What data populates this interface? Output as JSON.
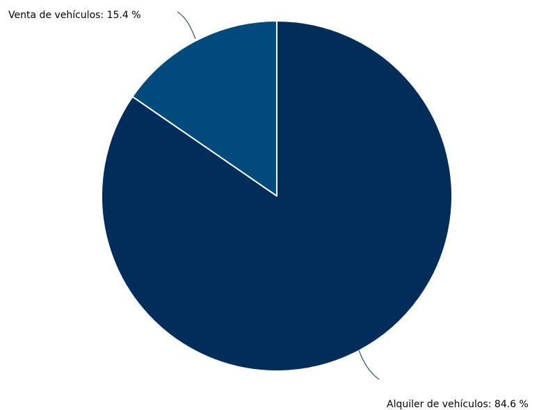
{
  "chart_data": {
    "type": "pie",
    "categories": [
      "Alquiler de vehículos",
      "Venta de vehículos"
    ],
    "values": [
      84.6,
      15.4
    ],
    "unit": "%",
    "data_labels": [
      "Alquiler de vehículos: 84.6 %",
      "Venta de vehículos: 15.4 %"
    ],
    "colors": [
      "#002d5a",
      "#004a7c"
    ],
    "slice_border_color": "#ffffff",
    "connector_color": "#002d5a",
    "start_direction": "top",
    "direction": "clockwise"
  }
}
